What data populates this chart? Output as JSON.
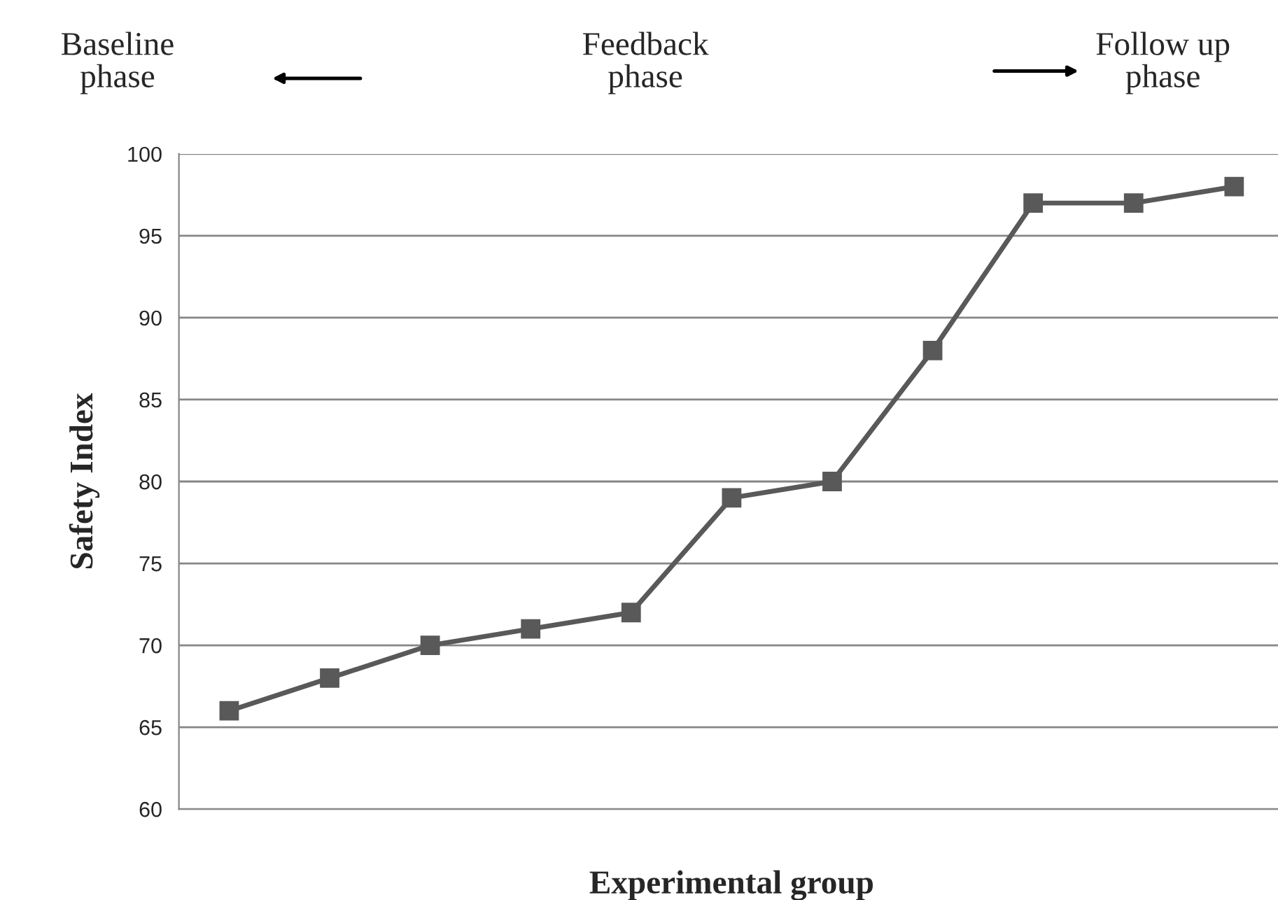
{
  "chart_data": {
    "type": "line",
    "categories": [
      null,
      null,
      null,
      null,
      null,
      null,
      null,
      null,
      null,
      null,
      null
    ],
    "series": [
      {
        "color": "#595959",
        "values": [
          66,
          68,
          70,
          71,
          72,
          79,
          80,
          88,
          97,
          97,
          98
        ]
      }
    ],
    "xlabel": "Experimental group",
    "ylabel": "Safety Index",
    "ylim": [
      60,
      100
    ],
    "yticks": [
      60,
      65,
      70,
      75,
      80,
      85,
      90,
      95,
      100
    ],
    "grid": "y",
    "marker": "square",
    "line_style": "solid",
    "annotations": [
      "Baseline\nphase",
      "Feedback\nphase",
      "Follow up\nphase"
    ]
  }
}
